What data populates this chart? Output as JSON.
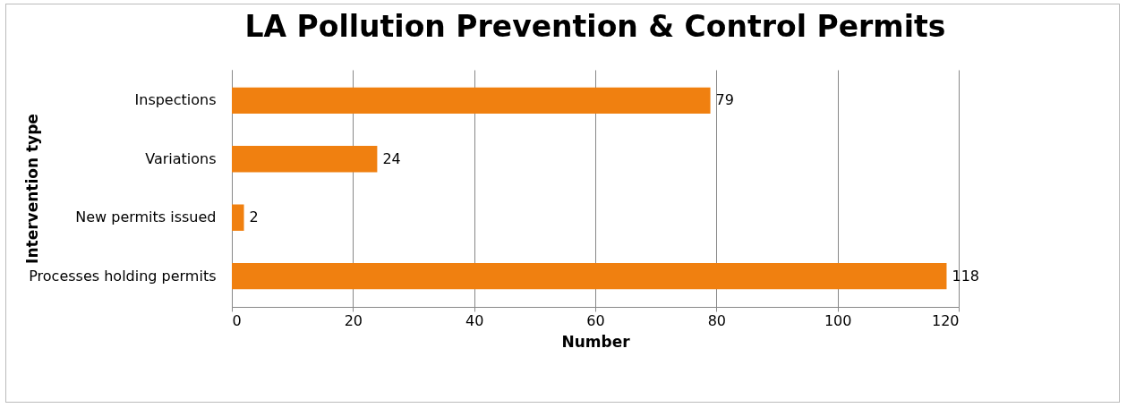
{
  "chart_data": {
    "type": "bar",
    "orientation": "horizontal",
    "title": "LA Pollution Prevention & Control Permits",
    "xlabel": "Number",
    "ylabel": "Intervention type",
    "categories": [
      "Inspections",
      "Variations",
      "New permits issued",
      "Processes holding permits"
    ],
    "values": [
      79,
      24,
      2,
      118
    ],
    "color": "#f08010",
    "xlim": [
      0,
      120
    ],
    "xticks": [
      0,
      20,
      40,
      60,
      80,
      100,
      120
    ],
    "grid": "x",
    "data_labels": true
  }
}
